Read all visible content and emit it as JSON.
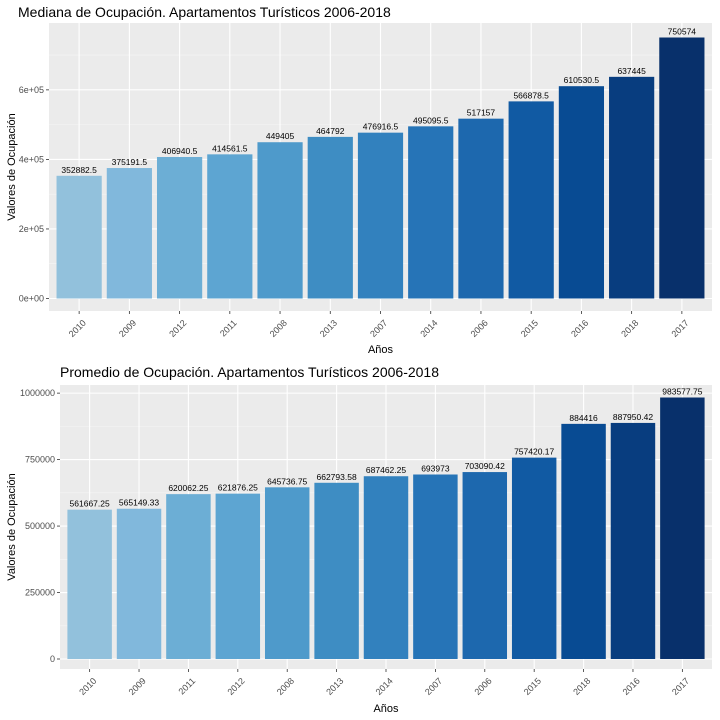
{
  "chart_data": [
    {
      "type": "bar",
      "title": "Mediana de Ocupación. Apartamentos Turísticos 2006-2018",
      "xlabel": "Años",
      "ylabel": "Valores de Ocupación",
      "ylim": [
        0,
        750574
      ],
      "yticks": [
        0,
        200000,
        400000,
        600000
      ],
      "ytick_labels": [
        "0e+00",
        "2e+05",
        "4e+05",
        "6e+05"
      ],
      "categories": [
        "2010",
        "2009",
        "2012",
        "2011",
        "2008",
        "2013",
        "2007",
        "2014",
        "2006",
        "2015",
        "2016",
        "2018",
        "2017"
      ],
      "values": [
        352882.5,
        375191.5,
        406940.5,
        414561.5,
        449405,
        464792,
        476916.5,
        495095.5,
        517157,
        566878.5,
        610530.5,
        637445,
        750574
      ],
      "data_labels": [
        "352882.5",
        "375191.5",
        "406940.5",
        "414561.5",
        "449405",
        "464792",
        "476916.5",
        "495095.5",
        "517157",
        "566878.5",
        "610530.5",
        "637445",
        "750574"
      ],
      "colors": [
        "#92c1dc",
        "#81b8dc",
        "#6caed5",
        "#5da5d2",
        "#4e9acb",
        "#3e8dc3",
        "#3281be",
        "#2674b7",
        "#1d68ae",
        "#115aa3",
        "#084b93",
        "#083d7f",
        "#08306b"
      ],
      "grid": true
    },
    {
      "type": "bar",
      "title": "Promedio de Ocupación. Apartamentos Turísticos 2006-2018",
      "xlabel": "Años",
      "ylabel": "Valores de Ocupación",
      "ylim": [
        0,
        983577.75
      ],
      "yticks": [
        0,
        250000,
        500000,
        750000,
        1000000
      ],
      "ytick_labels": [
        "0",
        "250000",
        "500000",
        "750000",
        "1000000"
      ],
      "categories": [
        "2010",
        "2009",
        "2011",
        "2012",
        "2008",
        "2013",
        "2014",
        "2007",
        "2006",
        "2015",
        "2018",
        "2016",
        "2017"
      ],
      "values": [
        561667.25,
        565149.33,
        620062.25,
        621876.25,
        645736.75,
        662793.58,
        687462.25,
        693973,
        703090.42,
        757420.17,
        884416,
        887950.42,
        983577.75
      ],
      "data_labels": [
        "561667.25",
        "565149.33",
        "620062.25",
        "621876.25",
        "645736.75",
        "662793.58",
        "687462.25",
        "693973",
        "703090.42",
        "757420.17",
        "884416",
        "887950.42",
        "983577.75"
      ],
      "colors": [
        "#92c1dc",
        "#81b8dc",
        "#6caed5",
        "#5da5d2",
        "#4e9acb",
        "#3e8dc3",
        "#3281be",
        "#2674b7",
        "#1d68ae",
        "#115aa3",
        "#084b93",
        "#083d7f",
        "#08306b"
      ],
      "grid": true
    }
  ]
}
